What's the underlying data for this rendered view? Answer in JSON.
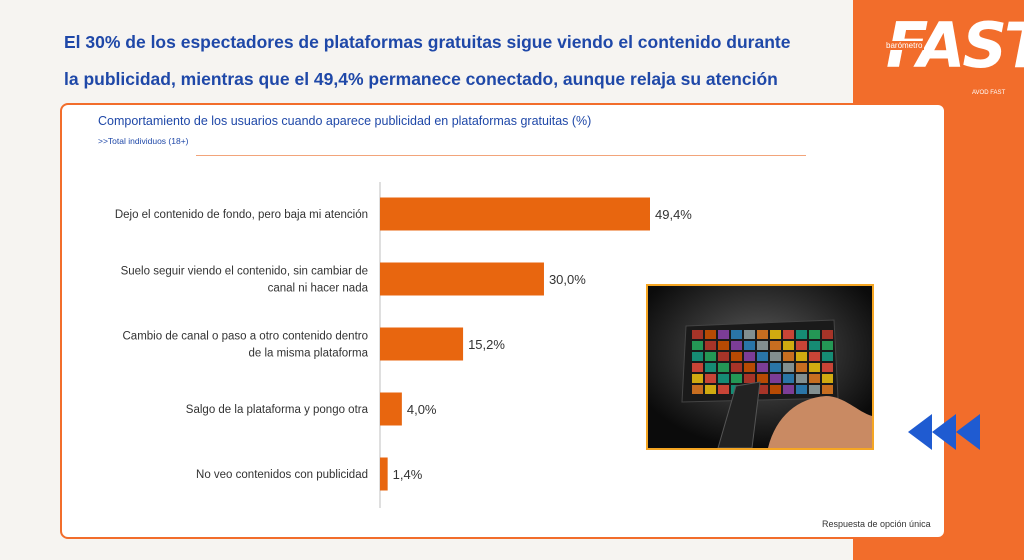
{
  "headline": {
    "line1": "El 30% de los espectadores de plataformas gratuitas sigue viendo el contenido durante",
    "line2": "la publicidad, mientras que el 49,4% permanece conectado, aunque relaja su atención"
  },
  "logo": {
    "word": "FAST",
    "small": "barómetro",
    "credit": "AVOD FAST"
  },
  "footnote": "Respuesta de opción única",
  "colors": {
    "accent": "#f26d2b",
    "bar": "#e8660f",
    "headline": "#1f48a8",
    "arrows": "#1f5bd1"
  },
  "icons": {
    "arrows": "triple-left-chevron-icon",
    "photo": "tv-remote-photo"
  },
  "chart_data": {
    "type": "bar",
    "orientation": "horizontal",
    "title": "Comportamiento de los usuarios cuando aparece publicidad en plataformas gratuitas (%)",
    "subtitle": ">>Total individuos (18+)",
    "categories": [
      [
        "Dejo el contenido de fondo, pero baja mi atención"
      ],
      [
        "Suelo seguir viendo el contenido, sin cambiar de",
        "canal ni hacer nada"
      ],
      [
        "Cambio de canal o paso a otro contenido dentro",
        "de la misma plataforma"
      ],
      [
        "Salgo de la plataforma y pongo otra"
      ],
      [
        "No veo contenidos con publicidad"
      ]
    ],
    "values": [
      49.4,
      30.0,
      15.2,
      4.0,
      1.4
    ],
    "labels": [
      "49,4%",
      "30,0%",
      "15,2%",
      "4,0%",
      "1,4%"
    ],
    "xlim": [
      0,
      50
    ],
    "grid": false
  }
}
